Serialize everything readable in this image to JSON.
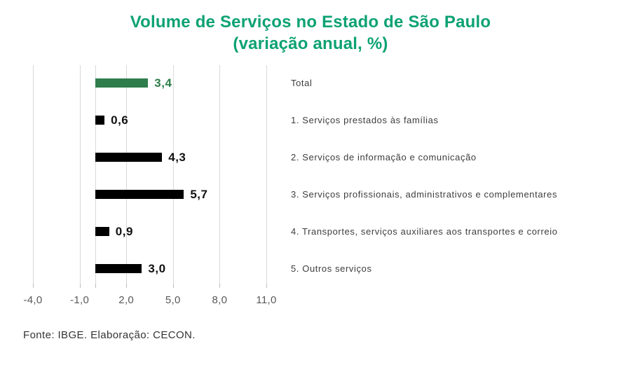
{
  "chart_data": {
    "type": "bar",
    "orientation": "horizontal",
    "title": "Volume de Serviços no Estado de São Paulo",
    "subtitle": "(variação anual, %)",
    "unit": "%",
    "categories": [
      "Total",
      "1. Serviços prestados às famílias",
      "2. Serviços de informação e comunicação",
      "3. Serviços profissionais, administrativos e complementares",
      "4. Transportes, serviços auxiliares aos transportes e correio",
      "5. Outros serviços"
    ],
    "values": [
      3.4,
      0.6,
      4.3,
      5.7,
      0.9,
      3.0
    ],
    "value_labels": [
      "3,4",
      "0,6",
      "4,3",
      "5,7",
      "0,9",
      "3,0"
    ],
    "bar_colors": [
      "#2e7d4b",
      "#000000",
      "#000000",
      "#000000",
      "#000000",
      "#000000"
    ],
    "value_label_colors": [
      "#2e7d4b",
      "#111111",
      "#111111",
      "#111111",
      "#111111",
      "#111111"
    ],
    "xlim": [
      -4,
      11
    ],
    "xticks": [
      -4,
      -1,
      2,
      5,
      8,
      11
    ],
    "xtick_labels": [
      "-4,0",
      "-1,0",
      "2,0",
      "5,0",
      "8,0",
      "11,0"
    ],
    "gridline_values": [
      -4,
      -1,
      0,
      2,
      5,
      8,
      11
    ],
    "grid": true,
    "legend": false,
    "baseline_value": 0,
    "colors": {
      "title": "#0da273",
      "grid": "#d9d9d9",
      "tick_label": "#595959",
      "category_label": "#3d3d3d"
    }
  },
  "footer": {
    "source": "Fonte: IBGE. Elaboração: CECON."
  }
}
